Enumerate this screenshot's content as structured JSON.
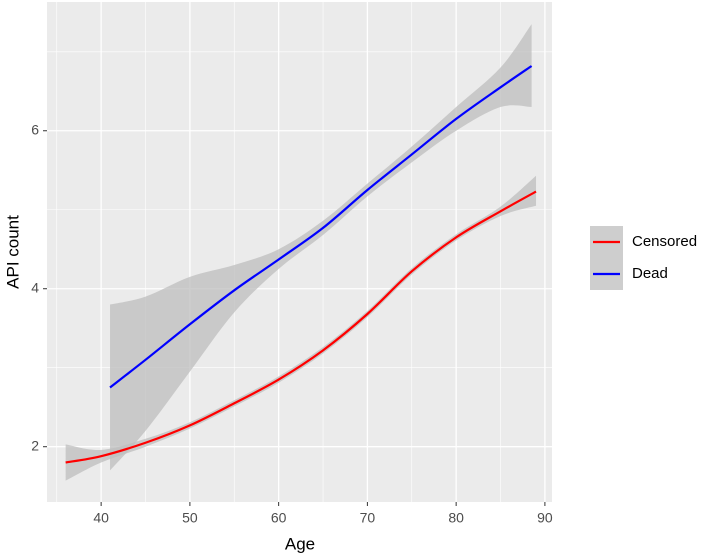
{
  "chart_data": {
    "type": "line",
    "x_label": "Age",
    "y_label": "API count",
    "xlim": [
      33.9,
      90.8
    ],
    "ylim": [
      1.3,
      7.63
    ],
    "xticks": [
      40,
      50,
      60,
      70,
      80,
      90
    ],
    "yticks": [
      2,
      4,
      6
    ],
    "minor_xticks": [
      35,
      45,
      55,
      65,
      75,
      85
    ],
    "minor_yticks": [
      3,
      5,
      7
    ],
    "grid": true,
    "legend": "right",
    "band_color": "#bebebe",
    "series": [
      {
        "name": "Censored",
        "color": "#ff0000",
        "x": [
          36,
          40,
          45,
          50,
          55,
          60,
          65,
          70,
          75,
          80,
          85,
          89
        ],
        "values": [
          1.8,
          1.88,
          2.05,
          2.27,
          2.55,
          2.85,
          3.22,
          3.68,
          4.22,
          4.65,
          4.98,
          5.23
        ],
        "lower": [
          1.57,
          1.8,
          2.0,
          2.23,
          2.51,
          2.81,
          3.18,
          3.64,
          4.18,
          4.61,
          4.92,
          5.05
        ],
        "upper": [
          2.03,
          1.96,
          2.1,
          2.31,
          2.59,
          2.89,
          3.26,
          3.72,
          4.26,
          4.69,
          5.04,
          5.43
        ]
      },
      {
        "name": "Dead",
        "color": "#0000ff",
        "x": [
          41,
          45,
          50,
          55,
          60,
          65,
          70,
          75,
          80,
          85,
          88.5
        ],
        "values": [
          2.75,
          3.1,
          3.55,
          3.98,
          4.37,
          4.77,
          5.25,
          5.7,
          6.15,
          6.55,
          6.82
        ],
        "lower": [
          1.7,
          2.2,
          2.95,
          3.7,
          4.25,
          4.68,
          5.17,
          5.6,
          6.0,
          6.3,
          6.3
        ],
        "upper": [
          3.8,
          3.9,
          4.15,
          4.3,
          4.5,
          4.86,
          5.33,
          5.8,
          6.3,
          6.8,
          7.35
        ]
      }
    ]
  }
}
